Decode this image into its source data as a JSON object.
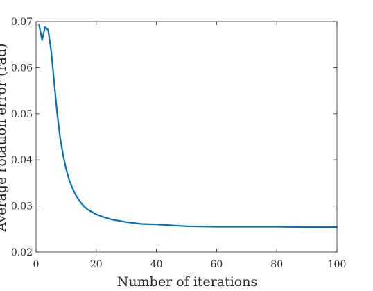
{
  "chart_data": {
    "type": "line",
    "title": "",
    "xlabel": "Number of iterations",
    "ylabel": "Average rotation error (rad)",
    "xlim": [
      0,
      100
    ],
    "ylim": [
      0.02,
      0.07
    ],
    "x_ticks": [
      0,
      20,
      40,
      60,
      80,
      100
    ],
    "y_ticks": [
      0.02,
      0.03,
      0.04,
      0.05,
      0.06,
      0.07
    ],
    "x_tick_labels": [
      "0",
      "20",
      "40",
      "60",
      "80",
      "100"
    ],
    "y_tick_labels": [
      "0.02",
      "0.03",
      "0.04",
      "0.05",
      "0.06",
      "0.07"
    ],
    "grid": false,
    "box": true,
    "series": [
      {
        "color": "#0072BD",
        "x": [
          1,
          2,
          3,
          4,
          5,
          6,
          7,
          8,
          9,
          10,
          11,
          12,
          13,
          14,
          15,
          16,
          17,
          18,
          20,
          22,
          25,
          30,
          35,
          40,
          45,
          50,
          60,
          70,
          80,
          90,
          100
        ],
        "y": [
          0.0693,
          0.066,
          0.0688,
          0.0682,
          0.0638,
          0.057,
          0.0502,
          0.0448,
          0.041,
          0.038,
          0.0357,
          0.034,
          0.0326,
          0.0315,
          0.0306,
          0.0299,
          0.0293,
          0.0289,
          0.0282,
          0.0277,
          0.0271,
          0.0265,
          0.0261,
          0.026,
          0.0258,
          0.0256,
          0.0255,
          0.0255,
          0.0255,
          0.0254,
          0.0254
        ]
      }
    ]
  }
}
